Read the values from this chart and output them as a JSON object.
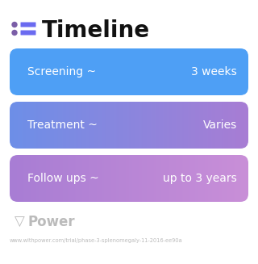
{
  "title": "Timeline",
  "title_fontsize": 20,
  "title_fontweight": "bold",
  "title_color": "#111111",
  "icon_color_dot": "#7B5EA7",
  "icon_color_bar": "#6B6BF0",
  "background_color": "#ffffff",
  "rows": [
    {
      "left_label": "Screening ~",
      "right_label": "3 weeks",
      "color_left": "#4E9FF5",
      "color_right": "#4E9FF5",
      "gradient": false
    },
    {
      "left_label": "Treatment ~",
      "right_label": "Varies",
      "color_left": "#6D8FE8",
      "color_right": "#A87DD4",
      "gradient": true
    },
    {
      "left_label": "Follow ups ~",
      "right_label": "up to 3 years",
      "color_left": "#A87DD4",
      "color_right": "#C98FD8",
      "gradient": true
    }
  ],
  "watermark": "Power",
  "url_text": "www.withpower.com/trial/phase-3-splenomegaly-11-2016-ee90a",
  "watermark_color": "#bbbbbb",
  "url_color": "#bbbbbb",
  "label_fontsize": 10,
  "label_color": "#ffffff"
}
